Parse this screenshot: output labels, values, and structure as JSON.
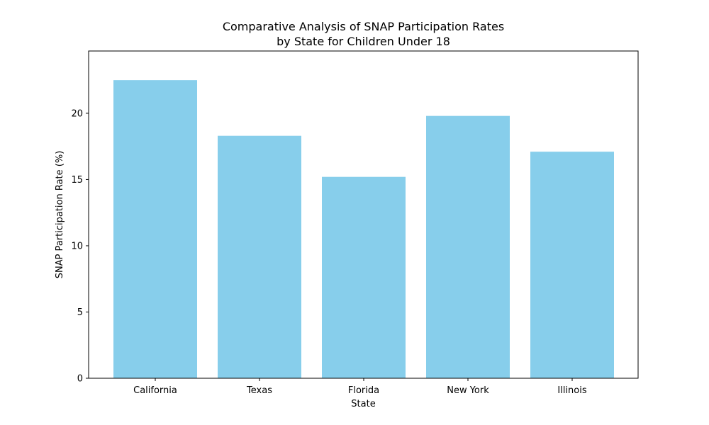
{
  "chart_data": {
    "type": "bar",
    "title_lines": [
      "Comparative Analysis of SNAP Participation Rates",
      "by State for Children Under 18"
    ],
    "xlabel": "State",
    "ylabel": "SNAP Participation Rate (%)",
    "categories": [
      "California",
      "Texas",
      "Florida",
      "New York",
      "Illinois"
    ],
    "values": [
      22.5,
      18.3,
      15.2,
      19.8,
      17.1
    ],
    "ylim": [
      0,
      24.7
    ],
    "yticks": [
      0,
      5,
      10,
      15,
      20
    ],
    "ytick_labels": [
      "0",
      "5",
      "10",
      "15",
      "20"
    ],
    "bar_color": "#87ceeb",
    "grid": false
  }
}
